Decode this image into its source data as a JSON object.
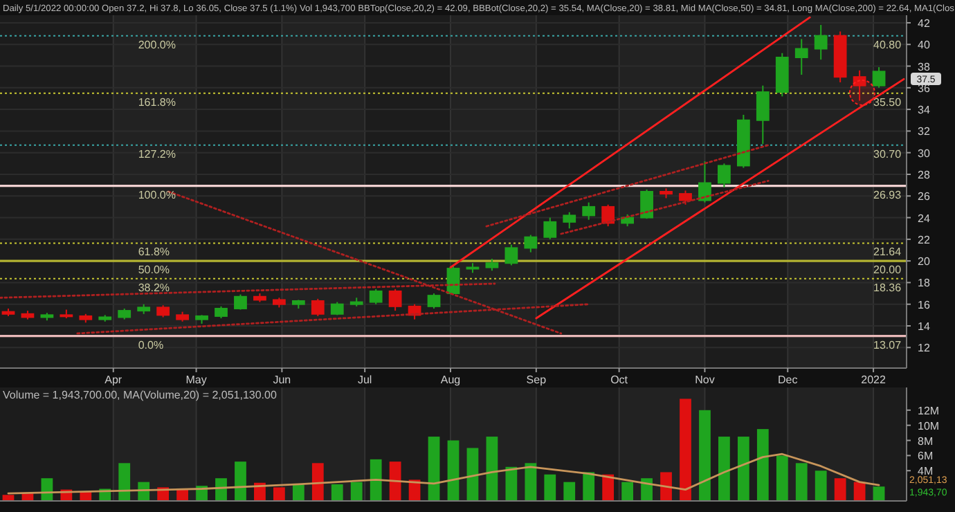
{
  "chart_data": [
    {
      "type": "candlestick",
      "title": "Daily 5/1/2022 00:00:00 Open 37.2, Hi 37.8, Lo 36.05, Close 37.5 (1.1%) Vol 1,943,700 BBTop(Close,20,2) = 42.09, BBBot(Close,20,2) = 35.54, MA(Close,20) = 38.81, Mid MA(Close,50) = 34.81, Long MA(Close,200) = 22.64, MA1(Clos",
      "x": [
        "2021-02-22",
        "2021-03-01",
        "2021-03-08",
        "2021-03-15",
        "2021-03-22",
        "2021-03-29",
        "2021-04-05",
        "2021-04-12",
        "2021-04-19",
        "2021-04-26",
        "2021-05-03",
        "2021-05-10",
        "2021-05-17",
        "2021-05-24",
        "2021-05-31",
        "2021-06-07",
        "2021-06-14",
        "2021-06-21",
        "2021-06-28",
        "2021-07-05",
        "2021-07-12",
        "2021-07-19",
        "2021-07-26",
        "2021-08-02",
        "2021-08-09",
        "2021-08-16",
        "2021-08-23",
        "2021-08-30",
        "2021-09-06",
        "2021-09-13",
        "2021-09-20",
        "2021-09-27",
        "2021-10-04",
        "2021-10-11",
        "2021-10-18",
        "2021-10-25",
        "2021-11-01",
        "2021-11-08",
        "2021-11-15",
        "2021-11-22",
        "2021-11-29",
        "2021-12-06",
        "2021-12-13",
        "2021-12-20",
        "2021-12-27",
        "2022-01-03"
      ],
      "ohlc": [
        [
          15.3,
          15.6,
          14.9,
          15.1
        ],
        [
          15.1,
          15.4,
          14.6,
          14.8
        ],
        [
          14.8,
          15.2,
          14.5,
          15.0
        ],
        [
          15.0,
          15.5,
          14.7,
          14.9
        ],
        [
          14.9,
          15.1,
          14.3,
          14.6
        ],
        [
          14.6,
          15.0,
          14.4,
          14.8
        ],
        [
          14.8,
          15.6,
          14.6,
          15.4
        ],
        [
          15.4,
          16.0,
          15.1,
          15.7
        ],
        [
          15.7,
          15.9,
          14.8,
          15.0
        ],
        [
          15.0,
          15.3,
          14.4,
          14.6
        ],
        [
          14.6,
          15.0,
          14.2,
          14.9
        ],
        [
          14.9,
          15.8,
          14.7,
          15.6
        ],
        [
          15.6,
          16.9,
          15.5,
          16.7
        ],
        [
          16.7,
          17.0,
          16.2,
          16.4
        ],
        [
          16.4,
          16.6,
          15.7,
          16.0
        ],
        [
          16.0,
          16.4,
          15.6,
          16.3
        ],
        [
          16.3,
          16.5,
          14.9,
          15.1
        ],
        [
          15.1,
          16.2,
          15.0,
          16.0
        ],
        [
          16.0,
          16.6,
          15.8,
          16.2
        ],
        [
          16.2,
          17.4,
          16.0,
          17.2
        ],
        [
          17.2,
          17.4,
          15.4,
          15.8
        ],
        [
          15.8,
          16.0,
          14.6,
          15.0
        ],
        [
          15.8,
          17.0,
          15.6,
          16.8
        ],
        [
          17.0,
          19.6,
          16.9,
          19.3
        ],
        [
          19.3,
          19.8,
          18.9,
          19.4
        ],
        [
          19.4,
          20.2,
          19.1,
          19.8
        ],
        [
          19.8,
          21.5,
          19.6,
          21.2
        ],
        [
          21.2,
          22.4,
          20.8,
          22.2
        ],
        [
          22.2,
          24.0,
          22.0,
          23.6
        ],
        [
          23.6,
          24.5,
          23.0,
          24.2
        ],
        [
          24.2,
          25.4,
          23.8,
          25.0
        ],
        [
          25.0,
          25.2,
          23.2,
          23.5
        ],
        [
          23.5,
          24.3,
          23.2,
          24.0
        ],
        [
          24.0,
          26.6,
          23.9,
          26.4
        ],
        [
          26.4,
          26.7,
          25.8,
          26.2
        ],
        [
          26.2,
          26.5,
          25.2,
          25.6
        ],
        [
          25.6,
          29.2,
          25.4,
          27.2
        ],
        [
          27.2,
          29.0,
          26.8,
          28.8
        ],
        [
          28.8,
          33.5,
          28.6,
          33.0
        ],
        [
          33.0,
          36.2,
          30.8,
          35.6
        ],
        [
          35.6,
          39.2,
          35.2,
          38.8
        ],
        [
          38.8,
          40.5,
          37.2,
          39.6
        ],
        [
          39.6,
          41.8,
          38.6,
          40.8
        ],
        [
          40.8,
          41.2,
          36.5,
          37.0
        ],
        [
          37.0,
          37.6,
          34.8,
          36.2
        ],
        [
          36.2,
          37.9,
          36.0,
          37.5
        ]
      ],
      "colors": [
        "#e01010",
        "#e01010",
        "#1fa51f",
        "#e01010",
        "#e01010",
        "#1fa51f",
        "#1fa51f",
        "#1fa51f",
        "#e01010",
        "#e01010",
        "#1fa51f",
        "#1fa51f",
        "#1fa51f",
        "#e01010",
        "#e01010",
        "#1fa51f",
        "#e01010",
        "#1fa51f",
        "#1fa51f",
        "#1fa51f",
        "#e01010",
        "#e01010",
        "#1fa51f",
        "#1fa51f",
        "#1fa51f",
        "#1fa51f",
        "#1fa51f",
        "#1fa51f",
        "#1fa51f",
        "#1fa51f",
        "#1fa51f",
        "#e01010",
        "#1fa51f",
        "#1fa51f",
        "#e01010",
        "#e01010",
        "#1fa51f",
        "#1fa51f",
        "#1fa51f",
        "#1fa51f",
        "#1fa51f",
        "#1fa51f",
        "#1fa51f",
        "#e01010",
        "#e01010",
        "#1fa51f"
      ],
      "series": [
        {
          "type": "line",
          "color": "#ff2020",
          "line_style": "solid",
          "x": [
            "2021-08-01",
            "2021-12-09"
          ],
          "values": [
            19.4,
            42.5
          ]
        },
        {
          "type": "line",
          "color": "#ff2020",
          "line_style": "solid",
          "x": [
            "2021-09-01",
            "2022-01-12"
          ],
          "values": [
            14.7,
            36.8
          ]
        },
        {
          "type": "line",
          "color": "#b02020",
          "line_style": "dotted",
          "x": [
            "2021-04-21",
            "2021-09-10"
          ],
          "values": [
            26.4,
            13.3
          ]
        },
        {
          "type": "line",
          "color": "#b02020",
          "line_style": "dotted",
          "x": [
            "2021-03-19",
            "2021-09-20"
          ],
          "values": [
            13.3,
            16.0
          ]
        },
        {
          "type": "line",
          "color": "#b02020",
          "line_style": "dotted",
          "x": [
            "2021-02-19",
            "2021-08-17"
          ],
          "values": [
            16.6,
            17.9
          ]
        },
        {
          "type": "line",
          "color": "#b02020",
          "line_style": "dotted",
          "x": [
            "2021-08-14",
            "2021-11-24"
          ],
          "values": [
            23.2,
            30.7
          ]
        },
        {
          "type": "line",
          "color": "#b02020",
          "line_style": "dotted",
          "x": [
            "2021-09-10",
            "2021-11-24"
          ],
          "values": [
            22.5,
            27.4
          ]
        }
      ],
      "ref_lines": [
        {
          "axis": "y",
          "value": 40.8,
          "label": "40.80",
          "color": "#3aa6a6",
          "line_style": "dotted"
        },
        {
          "axis": "y",
          "value": 35.5,
          "label": "35.50",
          "color": "#c8c832",
          "line_style": "dotted"
        },
        {
          "axis": "y",
          "value": 30.7,
          "label": "30.70",
          "color": "#3aa6a6",
          "line_style": "dotted"
        },
        {
          "axis": "y",
          "value": 26.93,
          "label": "26.93",
          "color": "#f0d0d0",
          "line_style": "solid"
        },
        {
          "axis": "y",
          "value": 21.64,
          "label": "21.64",
          "color": "#c8c832",
          "line_style": "dotted"
        },
        {
          "axis": "y",
          "value": 20.0,
          "label": "20.00",
          "color": "#b4b432",
          "line_style": "solid"
        },
        {
          "axis": "y",
          "value": 18.36,
          "label": "18.36",
          "color": "#c8c832",
          "line_style": "dotted"
        },
        {
          "axis": "y",
          "value": 13.07,
          "label": "13.07",
          "color": "#e8b8b8",
          "line_style": "solid"
        }
      ],
      "annotations": [
        {
          "text": "200.0%",
          "x": "2021-04-10",
          "y": 40.8
        },
        {
          "text": "161.8%",
          "x": "2021-04-10",
          "y": 35.5
        },
        {
          "text": "127.2%",
          "x": "2021-04-10",
          "y": 30.7
        },
        {
          "text": "100.0%",
          "x": "2021-04-10",
          "y": 26.93
        },
        {
          "text": "61.8%",
          "x": "2021-04-10",
          "y": 21.64
        },
        {
          "text": "50.0%",
          "x": "2021-04-10",
          "y": 20.0
        },
        {
          "text": "38.2%",
          "x": "2021-04-10",
          "y": 18.36
        },
        {
          "text": "0.0%",
          "x": "2021-04-10",
          "y": 13.07
        },
        "37.5"
      ],
      "xlim": [
        "2021-02-19",
        "2022-01-13"
      ],
      "xticks": [
        {
          "value": "2021-04-01",
          "label": "Apr"
        },
        {
          "value": "2021-05-01",
          "label": "May"
        },
        {
          "value": "2021-06-01",
          "label": "Jun"
        },
        {
          "value": "2021-07-01",
          "label": "Jul"
        },
        {
          "value": "2021-08-01",
          "label": "Aug"
        },
        {
          "value": "2021-09-01",
          "label": "Sep"
        },
        {
          "value": "2021-10-01",
          "label": "Oct"
        },
        {
          "value": "2021-11-01",
          "label": "Nov"
        },
        {
          "value": "2021-12-01",
          "label": "Dec"
        },
        {
          "value": "2022-01-01",
          "label": "2022"
        }
      ],
      "ylim": [
        10.1,
        42.7
      ],
      "yticks": [
        12,
        14,
        16,
        18,
        20,
        22,
        24,
        26,
        28,
        30,
        32,
        34,
        36,
        38,
        40,
        42
      ],
      "grid": true
    },
    {
      "type": "bar",
      "title": "Volume = 1,943,700.00, MA(Volume,20) = 2,051,130.00",
      "x": [
        "2021-02-22",
        "2021-03-01",
        "2021-03-08",
        "2021-03-15",
        "2021-03-22",
        "2021-03-29",
        "2021-04-05",
        "2021-04-12",
        "2021-04-19",
        "2021-04-26",
        "2021-05-03",
        "2021-05-10",
        "2021-05-17",
        "2021-05-24",
        "2021-05-31",
        "2021-06-07",
        "2021-06-14",
        "2021-06-21",
        "2021-06-28",
        "2021-07-05",
        "2021-07-12",
        "2021-07-19",
        "2021-07-26",
        "2021-08-02",
        "2021-08-09",
        "2021-08-16",
        "2021-08-23",
        "2021-08-30",
        "2021-09-06",
        "2021-09-13",
        "2021-09-20",
        "2021-09-27",
        "2021-10-04",
        "2021-10-11",
        "2021-10-18",
        "2021-10-25",
        "2021-11-01",
        "2021-11-08",
        "2021-11-15",
        "2021-11-22",
        "2021-11-29",
        "2021-12-06",
        "2021-12-13",
        "2021-12-20",
        "2021-12-27",
        "2022-01-03"
      ],
      "values": [
        0.8,
        1.0,
        3.0,
        1.5,
        1.2,
        1.6,
        5.0,
        2.5,
        1.8,
        1.5,
        2.0,
        3.0,
        5.2,
        2.4,
        1.8,
        2.2,
        5.0,
        2.2,
        2.5,
        5.5,
        5.2,
        2.8,
        8.5,
        8.0,
        7.0,
        8.5,
        4.5,
        5.0,
        3.5,
        2.5,
        3.8,
        3.5,
        2.5,
        3.0,
        3.8,
        13.5,
        12.0,
        8.5,
        8.5,
        9.5,
        6.0,
        5.0,
        4.0,
        3.0,
        2.5,
        1.9
      ],
      "colors": [
        "#e01010",
        "#e01010",
        "#1fa51f",
        "#e01010",
        "#e01010",
        "#1fa51f",
        "#1fa51f",
        "#1fa51f",
        "#e01010",
        "#e01010",
        "#1fa51f",
        "#1fa51f",
        "#1fa51f",
        "#e01010",
        "#e01010",
        "#1fa51f",
        "#e01010",
        "#1fa51f",
        "#1fa51f",
        "#1fa51f",
        "#e01010",
        "#e01010",
        "#1fa51f",
        "#1fa51f",
        "#1fa51f",
        "#1fa51f",
        "#1fa51f",
        "#1fa51f",
        "#1fa51f",
        "#1fa51f",
        "#1fa51f",
        "#e01010",
        "#1fa51f",
        "#1fa51f",
        "#e01010",
        "#e01010",
        "#1fa51f",
        "#1fa51f",
        "#1fa51f",
        "#1fa51f",
        "#1fa51f",
        "#1fa51f",
        "#1fa51f",
        "#e01010",
        "#e01010",
        "#1fa51f"
      ],
      "series": [
        {
          "type": "line",
          "color": "#c8955a",
          "line_style": "solid",
          "x": [
            "2021-02-22",
            "2021-03-29",
            "2021-05-03",
            "2021-06-07",
            "2021-07-05",
            "2021-07-26",
            "2021-08-16",
            "2021-08-30",
            "2021-09-20",
            "2021-10-11",
            "2021-10-25",
            "2021-11-08",
            "2021-11-22",
            "2021-11-29",
            "2021-12-13",
            "2021-12-27",
            "2022-01-03"
          ],
          "values": [
            1.0,
            1.3,
            1.6,
            2.2,
            2.8,
            2.3,
            3.8,
            4.5,
            3.6,
            2.3,
            1.5,
            3.8,
            5.8,
            6.2,
            4.6,
            2.5,
            2.1
          ]
        }
      ],
      "annotations": [
        "2,051,13",
        "1,943,70"
      ],
      "xlim": [
        "2021-02-19",
        "2022-01-13"
      ],
      "xticks": [
        {
          "value": "2021-04-01",
          "label": null
        },
        {
          "value": "2021-05-01",
          "label": null
        },
        {
          "value": "2021-06-01",
          "label": null
        },
        {
          "value": "2021-07-01",
          "label": null
        },
        {
          "value": "2021-08-01",
          "label": null
        },
        {
          "value": "2021-09-01",
          "label": null
        },
        {
          "value": "2021-10-01",
          "label": null
        },
        {
          "value": "2021-11-01",
          "label": null
        },
        {
          "value": "2021-12-01",
          "label": null
        },
        {
          "value": "2022-01-01",
          "label": null
        }
      ],
      "ylim": [
        0,
        15
      ],
      "yticks": [
        {
          "value": 4,
          "label": "4M"
        },
        {
          "value": 6,
          "label": "6M"
        },
        {
          "value": 8,
          "label": "8M"
        },
        {
          "value": 10,
          "label": "10M"
        },
        {
          "value": 12,
          "label": "12M"
        }
      ],
      "tick_labels": "y",
      "grid": "x"
    }
  ]
}
